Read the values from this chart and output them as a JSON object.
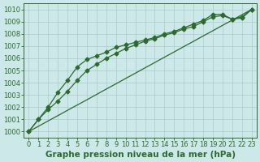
{
  "title": "Graphe pression niveau de la mer (hPa)",
  "bg_color": "#cce8e8",
  "grid_color": "#aacccc",
  "line_color": "#2d6a2d",
  "x_values": [
    0,
    1,
    2,
    3,
    4,
    5,
    6,
    7,
    8,
    9,
    10,
    11,
    12,
    13,
    14,
    15,
    16,
    17,
    18,
    19,
    20,
    21,
    22,
    23
  ],
  "line_straight": [
    1000.0,
    1000.43,
    1000.87,
    1001.3,
    1001.74,
    1002.17,
    1002.6,
    1003.04,
    1003.48,
    1003.91,
    1004.35,
    1004.78,
    1005.22,
    1005.65,
    1006.09,
    1006.52,
    1006.96,
    1007.39,
    1007.83,
    1008.26,
    1008.7,
    1009.13,
    1009.57,
    1010.0
  ],
  "line_mid": [
    1000.0,
    1001.0,
    1001.8,
    1002.5,
    1003.3,
    1004.2,
    1005.0,
    1005.5,
    1006.0,
    1006.4,
    1006.8,
    1007.1,
    1007.4,
    1007.6,
    1007.9,
    1008.1,
    1008.4,
    1008.6,
    1009.0,
    1009.4,
    1009.5,
    1009.2,
    1009.3,
    1010.0
  ],
  "line_top": [
    1000.0,
    1001.0,
    1002.0,
    1003.2,
    1004.2,
    1005.3,
    1005.9,
    1006.2,
    1006.5,
    1006.9,
    1007.1,
    1007.3,
    1007.5,
    1007.7,
    1008.0,
    1008.2,
    1008.5,
    1008.8,
    1009.1,
    1009.6,
    1009.6,
    1009.2,
    1009.4,
    1010.0
  ],
  "ylim": [
    999.5,
    1010.5
  ],
  "yticks": [
    1000,
    1001,
    1002,
    1003,
    1004,
    1005,
    1006,
    1007,
    1008,
    1009,
    1010
  ],
  "xlim": [
    -0.5,
    23.5
  ],
  "xticks": [
    0,
    1,
    2,
    3,
    4,
    5,
    6,
    7,
    8,
    9,
    10,
    11,
    12,
    13,
    14,
    15,
    16,
    17,
    18,
    19,
    20,
    21,
    22,
    23
  ],
  "marker": "D",
  "marker_size": 2.5,
  "line_width": 0.9,
  "font_size": 6,
  "title_font_size": 7.5
}
